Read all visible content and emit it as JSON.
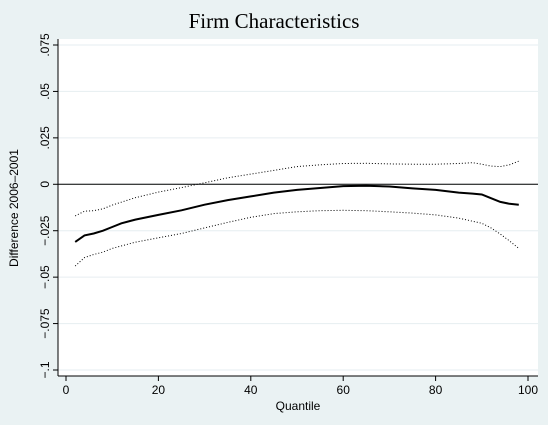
{
  "chart_data": {
    "type": "line",
    "title": "Firm Characteristics",
    "xlabel": "Quantile",
    "ylabel": "Difference 2006–2001",
    "xlim": [
      0,
      100
    ],
    "ylim": [
      -0.1,
      0.075
    ],
    "xticks": [
      0,
      20,
      40,
      60,
      80,
      100
    ],
    "xtick_labels": [
      "0",
      "20",
      "40",
      "60",
      "80",
      "100"
    ],
    "yticks": [
      -0.1,
      -0.075,
      -0.05,
      -0.025,
      0,
      0.025,
      0.05,
      0.075
    ],
    "ytick_labels": [
      "−.1",
      "−.075",
      "−.05",
      "−.025",
      "0",
      ".025",
      ".05",
      ".075"
    ],
    "grid": true,
    "reference_line_y": 0,
    "series": [
      {
        "style": "solid",
        "x": [
          2,
          4,
          6,
          8,
          10,
          12,
          15,
          20,
          25,
          30,
          35,
          40,
          45,
          50,
          55,
          60,
          65,
          70,
          75,
          80,
          85,
          88,
          90,
          92,
          94,
          96,
          98
        ],
        "y": [
          -0.031,
          -0.0275,
          -0.0265,
          -0.025,
          -0.023,
          -0.021,
          -0.019,
          -0.0165,
          -0.014,
          -0.011,
          -0.0085,
          -0.0065,
          -0.0045,
          -0.003,
          -0.002,
          -0.001,
          -0.0008,
          -0.0012,
          -0.0022,
          -0.003,
          -0.0045,
          -0.005,
          -0.0055,
          -0.0075,
          -0.0095,
          -0.0105,
          -0.011
        ]
      },
      {
        "style": "dotted",
        "x": [
          2,
          4,
          6,
          8,
          10,
          15,
          20,
          25,
          30,
          35,
          40,
          45,
          50,
          55,
          60,
          65,
          70,
          75,
          80,
          85,
          88,
          90,
          92,
          94,
          96,
          98
        ],
        "y": [
          -0.017,
          -0.0145,
          -0.0142,
          -0.0132,
          -0.0112,
          -0.0072,
          -0.0042,
          -0.0018,
          0.0008,
          0.0035,
          0.0055,
          0.0075,
          0.0095,
          0.0105,
          0.0112,
          0.0113,
          0.011,
          0.0108,
          0.0108,
          0.0112,
          0.0116,
          0.0108,
          0.0098,
          0.0095,
          0.0105,
          0.0125
        ]
      },
      {
        "style": "dotted",
        "x": [
          2,
          4,
          6,
          8,
          10,
          15,
          20,
          25,
          30,
          35,
          40,
          45,
          50,
          55,
          60,
          65,
          70,
          75,
          80,
          85,
          90,
          92,
          94,
          96,
          98
        ],
        "y": [
          -0.044,
          -0.0395,
          -0.0378,
          -0.0365,
          -0.0345,
          -0.0312,
          -0.0288,
          -0.0265,
          -0.0235,
          -0.0205,
          -0.0178,
          -0.0158,
          -0.0148,
          -0.0142,
          -0.014,
          -0.0142,
          -0.0148,
          -0.0155,
          -0.0165,
          -0.0182,
          -0.021,
          -0.0235,
          -0.0268,
          -0.0305,
          -0.0345
        ]
      }
    ]
  }
}
